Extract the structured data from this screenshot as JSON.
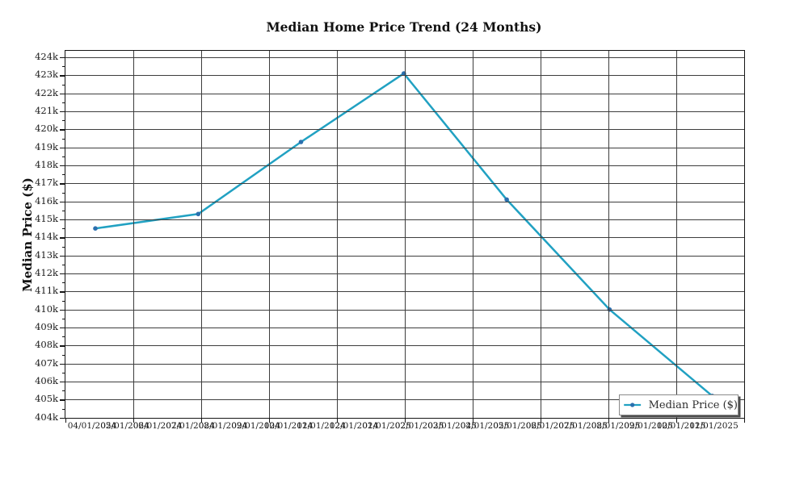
{
  "title": "Median Home Price Trend (24 Months)",
  "y_axis": {
    "label": "Median Price ($)",
    "tick_labels": [
      "424k",
      "423k",
      "422k",
      "421k",
      "420k",
      "419k",
      "418k",
      "417k",
      "416k",
      "415k",
      "414k",
      "413k",
      "412k",
      "411k",
      "410k",
      "409k",
      "408k",
      "407k",
      "406k",
      "405k",
      "404k"
    ]
  },
  "x_axis": {
    "tick_labels": [
      "04/01/2024",
      "05/01/2024",
      "06/01/2024",
      "07/01/2024",
      "08/01/2024",
      "09/01/2024",
      "10/01/2024",
      "11/01/2024",
      "12/01/2024",
      "01/01/2025",
      "02/01/2025",
      "03/01/2025",
      "04/01/2025",
      "05/01/2025",
      "06/01/2025",
      "07/01/2025",
      "08/01/2025",
      "09/01/2025",
      "10/01/2025",
      "11/01/2025"
    ]
  },
  "legend": {
    "label": "Median Price ($)"
  },
  "colors": {
    "line": "#21a1c2",
    "marker": "#2b6fae",
    "grid": "#3d3d3d",
    "spine": "#151515"
  },
  "chart_data": {
    "type": "line",
    "title": "Median Home Price Trend (24 Months)",
    "xlabel": "",
    "ylabel": "Median Price ($)",
    "x": [
      "04/01/2024",
      "07/08/2024",
      "10/12/2024",
      "01/17/2025",
      "04/22/2025",
      "07/28/2025",
      "11/01/2025"
    ],
    "series": [
      {
        "name": "Median Price ($)",
        "values": [
          414500,
          415300,
          419300,
          423100,
          416100,
          410000,
          405200
        ]
      }
    ],
    "x_tick_labels": [
      "04/01/2024",
      "05/01/2024",
      "06/01/2024",
      "07/01/2024",
      "08/01/2024",
      "09/01/2024",
      "10/01/2024",
      "11/01/2024",
      "12/01/2024",
      "01/01/2025",
      "02/01/2025",
      "03/01/2025",
      "04/01/2025",
      "05/01/2025",
      "06/01/2025",
      "07/01/2025",
      "08/01/2025",
      "09/01/2025",
      "10/01/2025",
      "11/01/2025"
    ],
    "y_tick_values": [
      404000,
      405000,
      406000,
      407000,
      408000,
      409000,
      410000,
      411000,
      412000,
      413000,
      414000,
      415000,
      416000,
      417000,
      418000,
      419000,
      420000,
      421000,
      422000,
      423000,
      424000
    ],
    "ylim": [
      403900,
      424400
    ],
    "grid": true,
    "legend_position": "lower right",
    "line_color": "#21a1c2",
    "marker_color": "#2b6fae"
  }
}
